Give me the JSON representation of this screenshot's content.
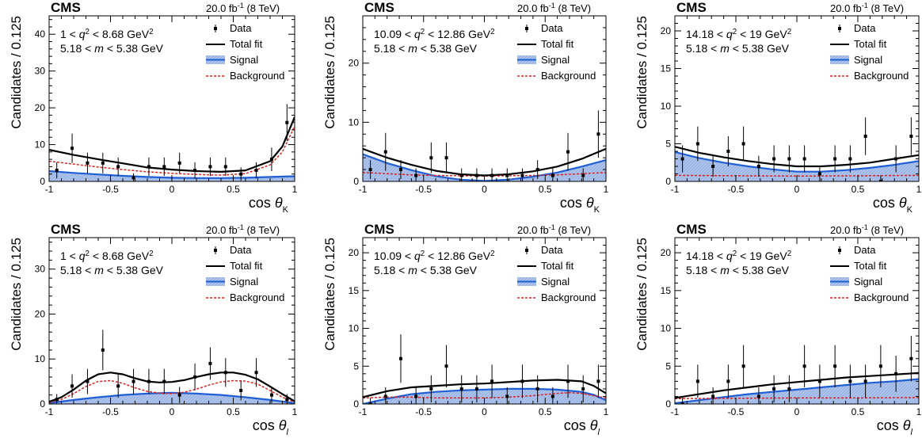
{
  "figure": {
    "experiment": "CMS",
    "lumi_label": "20.0 fb",
    "lumi_sup": "-1",
    "energy_label": "(8 TeV)",
    "ylabel": "Candidates / 0.125",
    "legend": {
      "data": "Data",
      "total": "Total fit",
      "signal": "Signal",
      "background": "Background"
    },
    "m_window": "5.18 < m < 5.38 GeV",
    "colors": {
      "total": "#000000",
      "signal_line": "#1f5fd6",
      "signal_fill": "#aec4ec",
      "background": "#e02020",
      "data": "#000000"
    }
  },
  "chart_data": [
    {
      "type": "scatter",
      "panel": "top-left",
      "xvar": "cos θ",
      "xsub": "K",
      "xlabel": "cos θK",
      "ylabel": "Candidates / 0.125",
      "q2_bin": "1 < q² < 8.68 GeV²",
      "xlim": [
        -1,
        1
      ],
      "ylim": [
        0,
        45
      ],
      "yticks": [
        0,
        10,
        20,
        30,
        40
      ],
      "xticks": [
        -1,
        -0.5,
        0,
        0.5,
        1
      ],
      "data": {
        "x": [
          -0.9375,
          -0.8125,
          -0.6875,
          -0.5625,
          -0.4375,
          -0.3125,
          -0.1875,
          -0.0625,
          0.0625,
          0.1875,
          0.3125,
          0.4375,
          0.5625,
          0.6875,
          0.8125,
          0.9375
        ],
        "y": [
          3,
          9,
          5,
          5,
          4,
          1,
          4,
          4,
          5,
          3,
          4,
          4,
          2,
          3,
          6,
          16
        ],
        "err": [
          2.2,
          4,
          2.8,
          2.8,
          2.5,
          1.2,
          2.5,
          2.5,
          2.8,
          2.2,
          2.5,
          2.5,
          1.8,
          2.2,
          3.2,
          5
        ]
      },
      "total": {
        "x": [
          -1,
          -0.8,
          -0.6,
          -0.4,
          -0.2,
          0,
          0.2,
          0.4,
          0.6,
          0.8,
          0.9,
          1.0
        ],
        "y": [
          8.6,
          7.2,
          6.0,
          4.9,
          3.8,
          3.2,
          2.8,
          2.6,
          3.0,
          5.5,
          9.5,
          17.5
        ]
      },
      "signal": {
        "x": [
          -1,
          -0.8,
          -0.6,
          -0.4,
          -0.2,
          0,
          0.2,
          0.4,
          0.6,
          0.8,
          1.0
        ],
        "y": [
          2.8,
          2.3,
          1.9,
          1.5,
          1.2,
          1.0,
          0.9,
          0.9,
          1.0,
          1.2,
          1.4
        ]
      },
      "background": {
        "x": [
          -1,
          -0.8,
          -0.6,
          -0.4,
          -0.2,
          0,
          0.2,
          0.4,
          0.6,
          0.8,
          0.9,
          1.0
        ],
        "y": [
          5.5,
          4.7,
          3.9,
          3.2,
          2.6,
          2.2,
          1.9,
          1.7,
          2.1,
          4.5,
          8.0,
          15.0
        ]
      }
    },
    {
      "type": "scatter",
      "panel": "top-middle",
      "xvar": "cos θ",
      "xsub": "K",
      "xlabel": "cos θK",
      "ylabel": "Candidates / 0.125",
      "q2_bin": "10.09 < q² < 12.86 GeV²",
      "xlim": [
        -1,
        1
      ],
      "ylim": [
        0,
        28
      ],
      "yticks": [
        0,
        10,
        20
      ],
      "xticks": [
        -1,
        -0.5,
        0,
        0.5,
        1
      ],
      "data": {
        "x": [
          -0.9375,
          -0.8125,
          -0.6875,
          -0.5625,
          -0.4375,
          -0.3125,
          -0.1875,
          -0.0625,
          0.0625,
          0.1875,
          0.3125,
          0.4375,
          0.5625,
          0.6875,
          0.8125,
          0.9375
        ],
        "y": [
          2,
          5,
          2,
          1,
          4,
          4,
          1,
          1,
          1,
          1,
          1,
          2,
          1,
          5,
          1,
          8
        ],
        "err": [
          1.6,
          3.2,
          1.6,
          1.2,
          2.6,
          2.6,
          1.2,
          1.2,
          1.2,
          1.2,
          1.2,
          1.6,
          1.2,
          3.2,
          1.2,
          4
        ]
      },
      "total": {
        "x": [
          -1,
          -0.8,
          -0.6,
          -0.4,
          -0.2,
          0,
          0.2,
          0.4,
          0.6,
          0.8,
          1.0
        ],
        "y": [
          5.5,
          4.0,
          2.8,
          1.8,
          1.2,
          1.0,
          1.2,
          1.7,
          2.5,
          3.8,
          5.5
        ]
      },
      "signal": {
        "x": [
          -1,
          -0.8,
          -0.6,
          -0.4,
          -0.2,
          0,
          0.2,
          0.4,
          0.6,
          0.8,
          1.0
        ],
        "y": [
          4.6,
          3.1,
          1.9,
          0.9,
          0.3,
          0.1,
          0.3,
          0.8,
          1.5,
          2.5,
          3.6
        ]
      },
      "background": {
        "x": [
          -1,
          -0.8,
          -0.6,
          -0.4,
          -0.2,
          0,
          0.2,
          0.4,
          0.6,
          0.8,
          1.0
        ],
        "y": [
          1.5,
          1.3,
          1.1,
          1.0,
          0.95,
          0.9,
          0.95,
          1.0,
          1.1,
          1.3,
          1.5
        ]
      }
    },
    {
      "type": "scatter",
      "panel": "top-right",
      "xvar": "cos θ",
      "xsub": "K",
      "xlabel": "cos θK",
      "ylabel": "Candidates / 0.125",
      "q2_bin": "14.18 < q² < 19 GeV²",
      "xlim": [
        -1,
        1
      ],
      "ylim": [
        0,
        22
      ],
      "yticks": [
        0,
        5,
        10,
        15,
        20
      ],
      "xticks": [
        -1,
        -0.5,
        0,
        0.5,
        1
      ],
      "data": {
        "x": [
          -0.9375,
          -0.8125,
          -0.6875,
          -0.5625,
          -0.4375,
          -0.3125,
          -0.1875,
          -0.0625,
          0.0625,
          0.1875,
          0.3125,
          0.4375,
          0.5625,
          0.6875,
          0.8125,
          0.9375
        ],
        "y": [
          3,
          5,
          2,
          4,
          5,
          2,
          3,
          3,
          3,
          1,
          3,
          3,
          6,
          0,
          3,
          6
        ],
        "err": [
          1.8,
          2.3,
          1.4,
          2.0,
          2.3,
          1.4,
          1.8,
          1.8,
          1.8,
          1.0,
          1.8,
          1.8,
          2.5,
          0.8,
          1.8,
          2.5
        ]
      },
      "total": {
        "x": [
          -1,
          -0.8,
          -0.6,
          -0.4,
          -0.2,
          0,
          0.2,
          0.4,
          0.6,
          0.8,
          1.0
        ],
        "y": [
          4.6,
          3.8,
          3.2,
          2.7,
          2.3,
          2.0,
          2.0,
          2.2,
          2.5,
          3.0,
          3.5
        ]
      },
      "signal": {
        "x": [
          -1,
          -0.8,
          -0.6,
          -0.4,
          -0.2,
          0,
          0.2,
          0.4,
          0.6,
          0.8,
          1.0
        ],
        "y": [
          3.9,
          3.1,
          2.5,
          2.0,
          1.6,
          1.3,
          1.3,
          1.5,
          1.8,
          2.2,
          2.7
        ]
      },
      "background": {
        "x": [
          -1,
          -0.5,
          0,
          0.5,
          1.0
        ],
        "y": [
          0.8,
          0.75,
          0.7,
          0.75,
          0.8
        ]
      }
    },
    {
      "type": "scatter",
      "panel": "bottom-left",
      "xvar": "cos θ",
      "xsub": "l",
      "xlabel": "cos θl",
      "ylabel": "Candidates / 0.125",
      "q2_bin": "1 < q² < 8.68 GeV²",
      "xlim": [
        -1,
        1
      ],
      "ylim": [
        0,
        37
      ],
      "yticks": [
        0,
        10,
        20,
        30
      ],
      "xticks": [
        -1,
        -0.5,
        0,
        0.5,
        1
      ],
      "data": {
        "x": [
          -0.9375,
          -0.8125,
          -0.6875,
          -0.5625,
          -0.4375,
          -0.3125,
          -0.1875,
          -0.0625,
          0.0625,
          0.1875,
          0.3125,
          0.4375,
          0.5625,
          0.6875,
          0.8125,
          0.9375
        ],
        "y": [
          1,
          4,
          5,
          12,
          4,
          5,
          5,
          5,
          2,
          6,
          9,
          7,
          3,
          7,
          2,
          1
        ],
        "err": [
          1.2,
          2.6,
          2.8,
          4.5,
          2.6,
          2.8,
          2.8,
          2.8,
          1.8,
          3.0,
          3.6,
          3.2,
          2.2,
          3.2,
          1.8,
          1.2
        ]
      },
      "total": {
        "x": [
          -1,
          -0.9,
          -0.8,
          -0.7,
          -0.6,
          -0.5,
          -0.4,
          -0.3,
          -0.2,
          -0.1,
          0,
          0.1,
          0.2,
          0.3,
          0.4,
          0.5,
          0.6,
          0.7,
          0.8,
          0.9,
          1.0
        ],
        "y": [
          0.5,
          1.5,
          3.2,
          5.2,
          6.6,
          7.0,
          6.6,
          5.7,
          5.0,
          4.8,
          4.9,
          5.3,
          6.0,
          6.6,
          7.0,
          7.0,
          6.5,
          5.5,
          3.9,
          2.2,
          0.6
        ]
      },
      "signal": {
        "x": [
          -1,
          -0.8,
          -0.6,
          -0.4,
          -0.2,
          0,
          0.2,
          0.4,
          0.6,
          0.8,
          1.0
        ],
        "y": [
          0.2,
          0.9,
          1.5,
          2.0,
          2.3,
          2.5,
          2.3,
          2.0,
          1.5,
          0.9,
          0.2
        ]
      },
      "background": {
        "x": [
          -1,
          -0.9,
          -0.8,
          -0.7,
          -0.6,
          -0.5,
          -0.4,
          -0.3,
          -0.2,
          -0.1,
          0,
          0.1,
          0.2,
          0.3,
          0.4,
          0.5,
          0.6,
          0.7,
          0.8,
          0.9,
          1.0
        ],
        "y": [
          0.3,
          1.0,
          2.3,
          3.9,
          5.0,
          5.2,
          4.6,
          3.6,
          2.8,
          2.4,
          2.3,
          2.6,
          3.3,
          4.2,
          4.9,
          5.2,
          5.1,
          4.4,
          3.0,
          1.5,
          0.4
        ]
      }
    },
    {
      "type": "scatter",
      "panel": "bottom-middle",
      "xvar": "cos θ",
      "xsub": "l",
      "xlabel": "cos θl",
      "ylabel": "Candidates / 0.125",
      "q2_bin": "10.09 < q² < 12.86 GeV²",
      "xlim": [
        -1,
        1
      ],
      "ylim": [
        0,
        22
      ],
      "yticks": [
        0,
        5,
        10,
        15,
        20
      ],
      "xticks": [
        -1,
        -0.5,
        0,
        0.5,
        1
      ],
      "data": {
        "x": [
          -0.9375,
          -0.8125,
          -0.6875,
          -0.5625,
          -0.4375,
          -0.3125,
          -0.1875,
          -0.0625,
          0.0625,
          0.1875,
          0.3125,
          0.4375,
          0.5625,
          0.6875,
          0.8125,
          0.9375
        ],
        "y": [
          0,
          1,
          6,
          1,
          2,
          5,
          2,
          2,
          3,
          1,
          3,
          2,
          1,
          3,
          2,
          3
        ],
        "err": [
          0.8,
          1.2,
          3.2,
          1.2,
          1.8,
          2.8,
          1.8,
          1.8,
          2.2,
          1.2,
          2.2,
          1.8,
          1.2,
          2.2,
          1.8,
          2.2
        ]
      },
      "total": {
        "x": [
          -1,
          -0.8,
          -0.6,
          -0.4,
          -0.2,
          0,
          0.2,
          0.4,
          0.6,
          0.8,
          0.9,
          1.0
        ],
        "y": [
          0.9,
          1.7,
          2.2,
          2.4,
          2.6,
          2.7,
          2.9,
          3.1,
          3.2,
          3.0,
          2.4,
          1.4
        ]
      },
      "signal": {
        "x": [
          -1,
          -0.8,
          -0.6,
          -0.4,
          -0.2,
          0,
          0.2,
          0.4,
          0.6,
          0.8,
          0.9,
          1.0
        ],
        "y": [
          0.0,
          0.7,
          1.3,
          1.6,
          1.8,
          1.9,
          2.0,
          2.0,
          1.9,
          1.6,
          1.2,
          0.5
        ]
      },
      "background": {
        "x": [
          -1,
          -0.8,
          -0.6,
          -0.4,
          -0.2,
          0,
          0.2,
          0.4,
          0.6,
          0.7,
          0.8,
          0.9,
          1.0
        ],
        "y": [
          0.8,
          0.9,
          0.9,
          0.8,
          0.8,
          0.8,
          0.9,
          1.1,
          1.4,
          1.5,
          1.4,
          1.1,
          0.8
        ]
      }
    },
    {
      "type": "scatter",
      "panel": "bottom-right",
      "xvar": "cos θ",
      "xsub": "l",
      "xlabel": "cos θl",
      "ylabel": "Candidates / 0.125",
      "q2_bin": "14.18 < q² < 19 GeV²",
      "xlim": [
        -1,
        1
      ],
      "ylim": [
        0,
        22
      ],
      "yticks": [
        0,
        5,
        10,
        15,
        20
      ],
      "xticks": [
        -1,
        -0.5,
        0,
        0.5,
        1
      ],
      "data": {
        "x": [
          -0.9375,
          -0.8125,
          -0.6875,
          -0.5625,
          -0.4375,
          -0.3125,
          -0.1875,
          -0.0625,
          0.0625,
          0.1875,
          0.3125,
          0.4375,
          0.5625,
          0.6875,
          0.8125,
          0.9375
        ],
        "y": [
          0,
          3,
          1,
          3,
          5,
          1,
          2,
          2,
          5,
          3,
          5,
          3,
          3,
          5,
          4,
          6
        ],
        "err": [
          0.8,
          2.2,
          1.2,
          2.2,
          2.8,
          1.2,
          1.8,
          1.8,
          2.8,
          2.2,
          2.8,
          2.2,
          2.2,
          2.8,
          2.4,
          3.0
        ]
      },
      "total": {
        "x": [
          -1,
          -0.8,
          -0.6,
          -0.4,
          -0.2,
          0,
          0.2,
          0.4,
          0.6,
          0.8,
          1.0
        ],
        "y": [
          0.8,
          1.3,
          1.8,
          2.2,
          2.6,
          2.9,
          3.2,
          3.5,
          3.7,
          3.9,
          4.1
        ]
      },
      "signal": {
        "x": [
          -1,
          -0.8,
          -0.6,
          -0.4,
          -0.2,
          0,
          0.2,
          0.4,
          0.6,
          0.8,
          1.0
        ],
        "y": [
          0.1,
          0.5,
          0.9,
          1.3,
          1.6,
          1.9,
          2.2,
          2.5,
          2.8,
          3.0,
          3.3
        ]
      },
      "background": {
        "x": [
          -1,
          -0.5,
          0,
          0.5,
          1.0
        ],
        "y": [
          0.7,
          0.75,
          0.8,
          0.8,
          0.85
        ]
      }
    }
  ]
}
